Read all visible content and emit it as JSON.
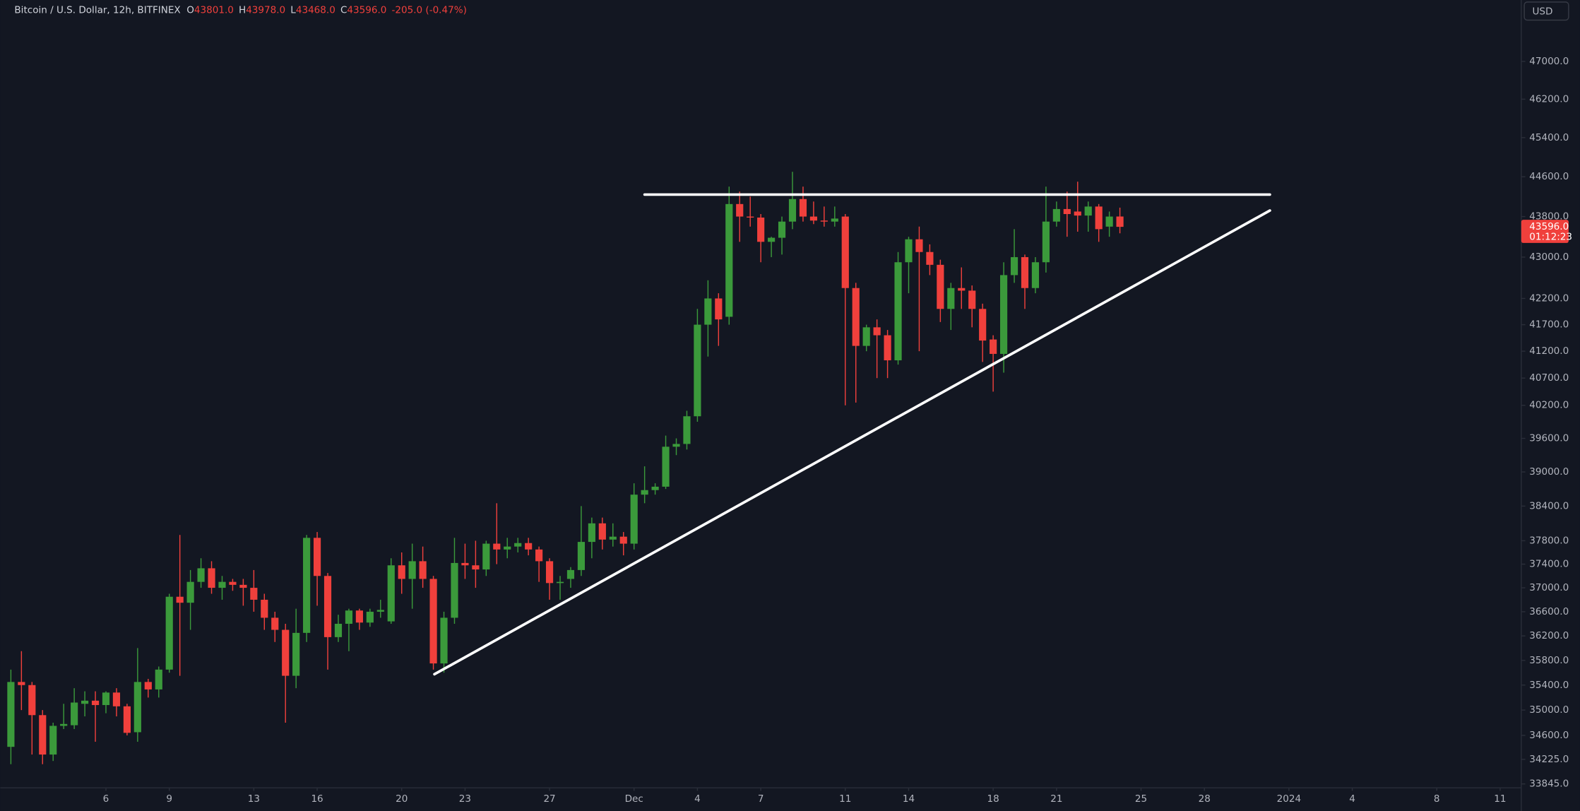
{
  "chart_data": {
    "type": "candlestick",
    "title": "Bitcoin / U.S. Dollar, 12h, BITFINEX",
    "header": [
      {
        "key": "O",
        "value": "43801.0"
      },
      {
        "key": "H",
        "value": "43978.0"
      },
      {
        "key": "L",
        "value": "43468.0"
      },
      {
        "key": "C",
        "value": "43596.0"
      }
    ],
    "change": "-205.0 (-0.47%)",
    "currency": "USD",
    "up_color": "#3b9a3b",
    "down_color": "#f0403c",
    "log_scale": true,
    "grid": false,
    "open": [
      34420,
      35450,
      35400,
      34920,
      34300,
      34750,
      34760,
      35100,
      35150,
      35080,
      35280,
      35060,
      34650,
      35450,
      35330,
      35650,
      36850,
      36750,
      37100,
      37330,
      37000,
      37100,
      37050,
      37000,
      36800,
      36500,
      36300,
      35550,
      36250,
      37850,
      37200,
      36180,
      36400,
      36620,
      36420,
      36600,
      36440,
      37380,
      37150,
      37450,
      37150,
      35750,
      36500,
      37420,
      37380,
      37310,
      37750,
      37650,
      37700,
      37760,
      37650,
      37450,
      37080,
      37150,
      37300,
      37780,
      38100,
      37820,
      37870,
      37750,
      38600,
      38680,
      38740,
      39450,
      39500,
      40000,
      41700,
      42200,
      41850,
      44050,
      43800,
      43780,
      43300,
      43380,
      43700,
      44150,
      43800,
      43720,
      43700,
      43800,
      42400,
      41300,
      41650,
      41500,
      41030,
      42900,
      43350,
      43100,
      42850,
      42000,
      42400,
      42350,
      42000,
      41420,
      41150,
      42650,
      43000,
      42400,
      42900,
      43700,
      43950,
      43900,
      43820,
      44000,
      43600,
      43801
    ],
    "high": [
      35650,
      35950,
      35450,
      35000,
      34800,
      35100,
      35350,
      35300,
      35300,
      35300,
      35350,
      35100,
      36000,
      35500,
      35700,
      36900,
      37900,
      37300,
      37500,
      37450,
      37200,
      37150,
      37150,
      37300,
      36900,
      36600,
      36400,
      36650,
      37900,
      37950,
      37250,
      36550,
      36650,
      36650,
      36650,
      36800,
      37500,
      37600,
      37750,
      37700,
      37200,
      36600,
      37850,
      37750,
      37800,
      37800,
      38450,
      37850,
      37850,
      37850,
      37700,
      37500,
      37200,
      37350,
      38400,
      38200,
      38200,
      38100,
      37950,
      38800,
      39100,
      38800,
      39650,
      39600,
      40100,
      42000,
      42550,
      42300,
      44400,
      44300,
      44200,
      43850,
      43400,
      43800,
      44700,
      44400,
      44100,
      44000,
      44000,
      43850,
      42500,
      41700,
      41800,
      41600,
      43100,
      43400,
      43600,
      43250,
      42950,
      42500,
      42800,
      42450,
      42100,
      41500,
      42900,
      43550,
      43050,
      43000,
      44400,
      44100,
      44300,
      44500,
      44100,
      44050,
      43900,
      43978
    ],
    "low": [
      34150,
      35000,
      34300,
      34150,
      34200,
      34700,
      34700,
      34900,
      34500,
      34950,
      34900,
      34600,
      34500,
      35200,
      35200,
      35600,
      35550,
      36300,
      37000,
      36900,
      36800,
      36950,
      36700,
      36600,
      36300,
      36100,
      34800,
      35350,
      36100,
      36700,
      35650,
      36100,
      35950,
      36300,
      36350,
      36500,
      36400,
      36900,
      36650,
      37000,
      35650,
      35600,
      36400,
      37150,
      37000,
      37200,
      37400,
      37500,
      37600,
      37550,
      37100,
      36800,
      36800,
      37000,
      37200,
      37500,
      37650,
      37700,
      37550,
      37650,
      38450,
      38600,
      38700,
      39300,
      39400,
      39900,
      41100,
      41300,
      41700,
      43300,
      43600,
      42900,
      43000,
      43050,
      43550,
      43700,
      43650,
      43600,
      43600,
      40200,
      40250,
      41200,
      40700,
      40700,
      40950,
      42300,
      41200,
      42650,
      41750,
      41600,
      42000,
      41650,
      41000,
      40450,
      40800,
      42500,
      42000,
      42300,
      42700,
      43600,
      43400,
      43500,
      43500,
      43300,
      43400,
      43468
    ],
    "close": [
      35450,
      35400,
      34920,
      34300,
      34750,
      34780,
      35120,
      35150,
      35080,
      35280,
      35060,
      34640,
      35450,
      35330,
      35650,
      36850,
      36750,
      37100,
      37330,
      37000,
      37100,
      37050,
      37000,
      36800,
      36500,
      36300,
      35550,
      36250,
      37850,
      37200,
      36180,
      36400,
      36620,
      36420,
      36600,
      36630,
      37380,
      37150,
      37450,
      37150,
      35750,
      36500,
      37420,
      37380,
      37310,
      37750,
      37650,
      37700,
      37760,
      37650,
      37450,
      37080,
      37100,
      37300,
      37780,
      38100,
      37820,
      37870,
      37750,
      38600,
      38680,
      38740,
      39450,
      39500,
      40000,
      41700,
      42200,
      41800,
      44050,
      43800,
      43780,
      43300,
      43380,
      43700,
      44150,
      43800,
      43720,
      43700,
      43760,
      42400,
      41300,
      41650,
      41500,
      41030,
      42900,
      43350,
      43100,
      42850,
      42000,
      42400,
      42350,
      42000,
      41400,
      41150,
      42650,
      43000,
      42400,
      42900,
      43700,
      43950,
      43850,
      43820,
      44000,
      43550,
      43800,
      43596
    ],
    "xlim": [
      -1,
      143
    ],
    "xticks": [
      {
        "value": 9,
        "label": "6"
      },
      {
        "value": 15,
        "label": "9"
      },
      {
        "value": 23,
        "label": "13"
      },
      {
        "value": 29,
        "label": "16"
      },
      {
        "value": 37,
        "label": "20"
      },
      {
        "value": 43,
        "label": "23"
      },
      {
        "value": 51,
        "label": "27"
      },
      {
        "value": 59,
        "label": "Dec"
      },
      {
        "value": 65,
        "label": "4"
      },
      {
        "value": 71,
        "label": "7"
      },
      {
        "value": 79,
        "label": "11"
      },
      {
        "value": 85,
        "label": "14"
      },
      {
        "value": 93,
        "label": "18"
      },
      {
        "value": 99,
        "label": "21"
      },
      {
        "value": 107,
        "label": "25"
      },
      {
        "value": 113,
        "label": "28"
      },
      {
        "value": 121,
        "label": "2024"
      },
      {
        "value": 127,
        "label": "4"
      },
      {
        "value": 135,
        "label": "8"
      },
      {
        "value": 141,
        "label": "11"
      }
    ],
    "ylim": [
      33785,
      48330
    ],
    "yticks": [
      {
        "value": 47000,
        "label": "47000.0"
      },
      {
        "value": 46200,
        "label": "46200.0"
      },
      {
        "value": 45400,
        "label": "45400.0"
      },
      {
        "value": 44600,
        "label": "44600.0"
      },
      {
        "value": 43800,
        "label": "43800.0"
      },
      {
        "value": 43000,
        "label": "43000.0"
      },
      {
        "value": 42200,
        "label": "42200.0"
      },
      {
        "value": 41700,
        "label": "41700.0"
      },
      {
        "value": 41200,
        "label": "41200.0"
      },
      {
        "value": 40700,
        "label": "40700.0"
      },
      {
        "value": 40200,
        "label": "40200.0"
      },
      {
        "value": 39600,
        "label": "39600.0"
      },
      {
        "value": 39000,
        "label": "39000.0"
      },
      {
        "value": 38400,
        "label": "38400.0"
      },
      {
        "value": 37800,
        "label": "37800.0"
      },
      {
        "value": 37400,
        "label": "37400.0"
      },
      {
        "value": 37000,
        "label": "37000.0"
      },
      {
        "value": 36600,
        "label": "36600.0"
      },
      {
        "value": 36200,
        "label": "36200.0"
      },
      {
        "value": 35800,
        "label": "35800.0"
      },
      {
        "value": 35400,
        "label": "35400.0"
      },
      {
        "value": 35000,
        "label": "35000.0"
      },
      {
        "value": 34600,
        "label": "34600.0"
      },
      {
        "value": 34225,
        "label": "34225.0"
      },
      {
        "value": 33845,
        "label": "33845.0"
      }
    ],
    "last_price": {
      "value": 43596,
      "label": "43596.0"
    },
    "countdown": "01:12:23",
    "trend_lines": [
      {
        "color": "#ffffff",
        "x": [
          60,
          119.2
        ],
        "y": [
          44240,
          44240
        ]
      },
      {
        "color": "#ffffff",
        "x": [
          40.1,
          119.2
        ],
        "y": [
          35575,
          43920
        ]
      }
    ]
  }
}
